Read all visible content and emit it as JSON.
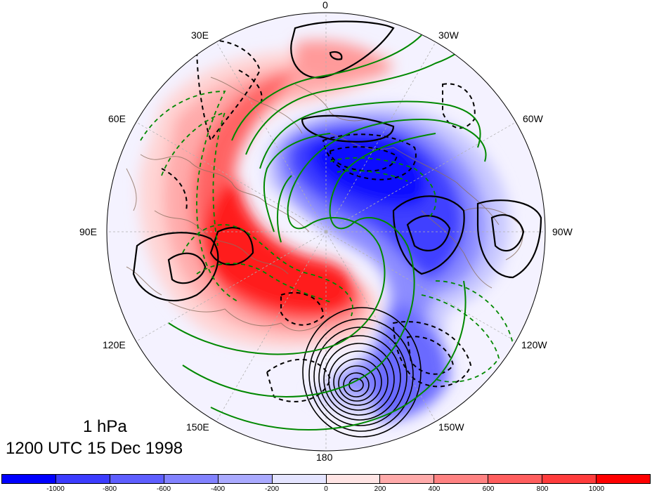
{
  "title": {
    "level": "1 hPa",
    "time": "1200 UTC 15 Dec 1998"
  },
  "longitude_labels": [
    "0",
    "30W",
    "60W",
    "90W",
    "120W",
    "150W",
    "180",
    "150E",
    "120E",
    "90E",
    "60E",
    "30E"
  ],
  "colorbar": {
    "colors": [
      "#0000ff",
      "#3c3cff",
      "#5e5eff",
      "#8282ff",
      "#aaaaff",
      "#e4e4ff",
      "#ffe4e4",
      "#ffaaaa",
      "#ff8282",
      "#ff5e5e",
      "#ff3c3c",
      "#ff0000"
    ],
    "labels": [
      "-1000",
      "-800",
      "-600",
      "-400",
      "-200",
      "0",
      "200",
      "400",
      "600",
      "800",
      "1000"
    ]
  },
  "colors": {
    "positive_contour": "#000000",
    "streamfunction_contour": "#008800",
    "coastline": "#8b7060",
    "grid": "#b0b0b0"
  }
}
